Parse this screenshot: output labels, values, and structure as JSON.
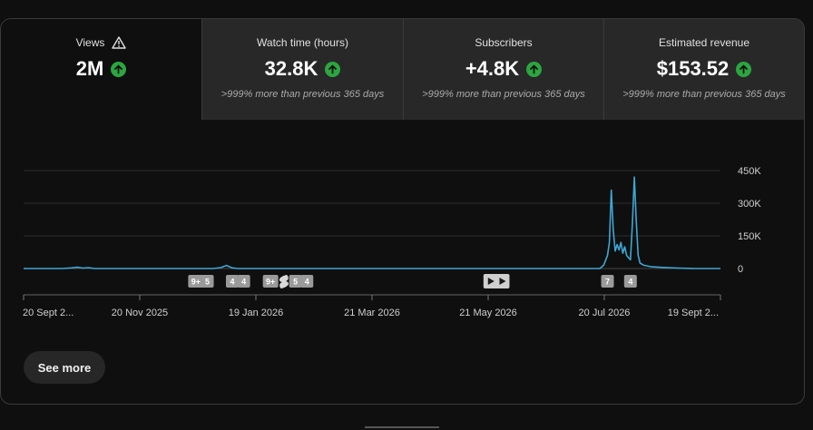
{
  "tabs": [
    {
      "title": "Views",
      "value": "2M",
      "subtitle": "",
      "warning": true
    },
    {
      "title": "Watch time (hours)",
      "value": "32.8K",
      "subtitle": ">999% more than previous 365 days",
      "warning": false
    },
    {
      "title": "Subscribers",
      "value": "+4.8K",
      "subtitle": ">999% more than previous 365 days",
      "warning": false
    },
    {
      "title": "Estimated revenue",
      "value": "$153.52",
      "subtitle": ">999% more than previous 365 days",
      "warning": false
    }
  ],
  "colors": {
    "line": "#3ea6d4",
    "up": "#2ba640",
    "grid": "#2e2e2e"
  },
  "chart_data": {
    "type": "line",
    "y_ticks": [
      "450K",
      "300K",
      "150K",
      "0"
    ],
    "y_tick_values": [
      450000,
      300000,
      150000,
      0
    ],
    "ylim": [
      0,
      450000
    ],
    "x_tick_labels": [
      "20 Sept 2...",
      "20 Nov 2025",
      "19 Jan 2026",
      "21 Mar 2026",
      "21 May 2026",
      "20 Jul 2026",
      "19 Sept 2..."
    ],
    "x_start": "2025-09-20",
    "x_end": "2026-09-19",
    "series": [
      {
        "points": [
          [
            "2025-09-20",
            0
          ],
          [
            "2025-10-10",
            0
          ],
          [
            "2025-10-15",
            3000
          ],
          [
            "2025-10-18",
            6000
          ],
          [
            "2025-10-21",
            2000
          ],
          [
            "2025-10-24",
            4000
          ],
          [
            "2025-10-27",
            0
          ],
          [
            "2025-12-28",
            0
          ],
          [
            "2026-01-01",
            4000
          ],
          [
            "2026-01-04",
            14000
          ],
          [
            "2026-01-07",
            3000
          ],
          [
            "2026-01-10",
            0
          ],
          [
            "2026-07-18",
            0
          ],
          [
            "2026-07-20",
            15000
          ],
          [
            "2026-07-22",
            60000
          ],
          [
            "2026-07-23",
            120000
          ],
          [
            "2026-07-24",
            360000
          ],
          [
            "2026-07-25",
            180000
          ],
          [
            "2026-07-26",
            80000
          ],
          [
            "2026-07-27",
            110000
          ],
          [
            "2026-07-28",
            85000
          ],
          [
            "2026-07-29",
            120000
          ],
          [
            "2026-07-30",
            70000
          ],
          [
            "2026-07-31",
            100000
          ],
          [
            "2026-08-01",
            60000
          ],
          [
            "2026-08-02",
            50000
          ],
          [
            "2026-08-03",
            40000
          ],
          [
            "2026-08-04",
            200000
          ],
          [
            "2026-08-05",
            420000
          ],
          [
            "2026-08-06",
            220000
          ],
          [
            "2026-08-07",
            60000
          ],
          [
            "2026-08-08",
            25000
          ],
          [
            "2026-08-10",
            15000
          ],
          [
            "2026-08-14",
            8000
          ],
          [
            "2026-08-20",
            5000
          ],
          [
            "2026-08-28",
            2000
          ],
          [
            "2026-09-05",
            0
          ],
          [
            "2026-09-19",
            0
          ]
        ]
      }
    ],
    "markers": [
      {
        "date": "2025-12-19",
        "label": "9+",
        "kind": "badge"
      },
      {
        "date": "2025-12-25",
        "label": "5",
        "kind": "badge"
      },
      {
        "date": "2026-01-07",
        "label": "4",
        "kind": "badge"
      },
      {
        "date": "2026-01-13",
        "label": "4",
        "kind": "badge"
      },
      {
        "date": "2026-01-27",
        "label": "9+",
        "kind": "badge"
      },
      {
        "date": "2026-02-03",
        "label": "",
        "kind": "shorts"
      },
      {
        "date": "2026-02-09",
        "label": "5",
        "kind": "badge"
      },
      {
        "date": "2026-02-15",
        "label": "4",
        "kind": "badge"
      },
      {
        "date": "2026-05-22",
        "label": "",
        "kind": "video"
      },
      {
        "date": "2026-05-28",
        "label": "",
        "kind": "video"
      },
      {
        "date": "2026-07-22",
        "label": "7",
        "kind": "badge"
      },
      {
        "date": "2026-08-03",
        "label": "4",
        "kind": "badge"
      }
    ]
  },
  "see_more": {
    "label": "See more"
  }
}
